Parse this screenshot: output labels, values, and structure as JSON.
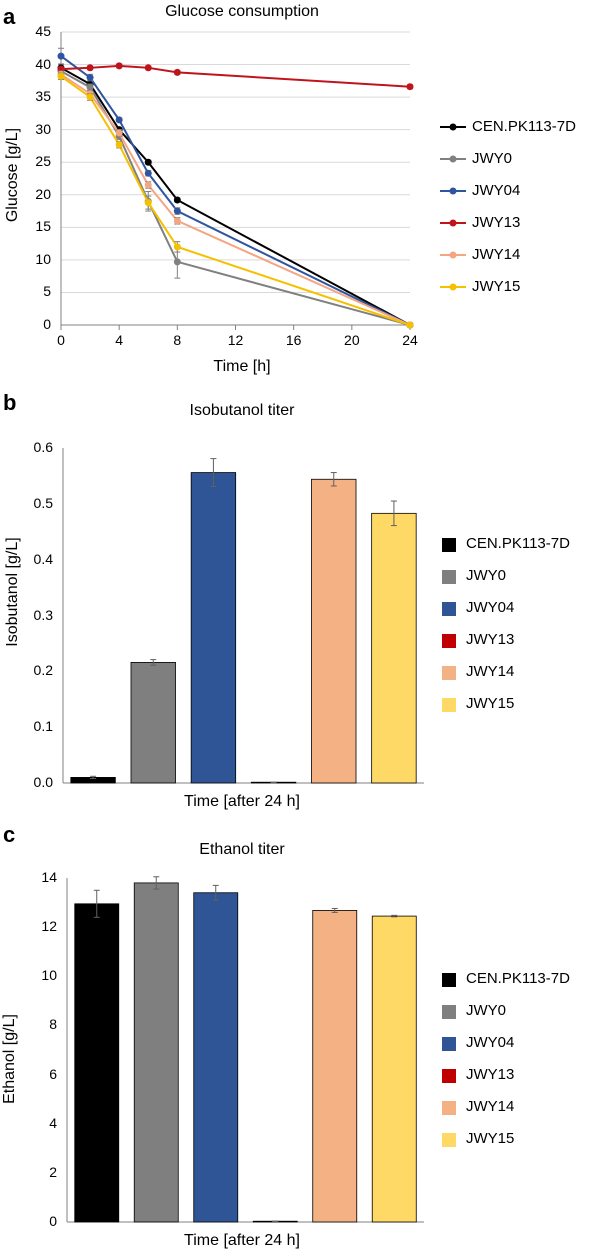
{
  "chart_data": [
    {
      "panel": "a",
      "type": "line",
      "title": "Glucose consumption",
      "xlabel": "Time [h]",
      "ylabel": "Glucose [g/L]",
      "xticks": [
        0,
        4,
        8,
        12,
        16,
        20,
        24
      ],
      "yticks": [
        0,
        5,
        10,
        15,
        20,
        25,
        30,
        35,
        40,
        45
      ],
      "xlim": [
        0,
        24
      ],
      "ylim": [
        0,
        45
      ],
      "x": [
        0,
        2,
        4,
        6,
        8,
        24
      ],
      "series": [
        {
          "name": "CEN.PK113-7D",
          "color": "#000000",
          "values": [
            39.5,
            37,
            30,
            25,
            19.2,
            0
          ],
          "errors": [
            0.5,
            0.5,
            0.3,
            0.3,
            0.3,
            0
          ]
        },
        {
          "name": "JWY0",
          "color": "#808080",
          "values": [
            39,
            36.5,
            29,
            19,
            9.7,
            0
          ],
          "errors": [
            0.5,
            0.5,
            0.5,
            1.5,
            2.5,
            0
          ]
        },
        {
          "name": "JWY04",
          "color": "#2f55a0",
          "values": [
            41.3,
            38,
            31.5,
            23.3,
            17.5,
            0
          ],
          "errors": [
            1.2,
            0.5,
            0.3,
            0.4,
            0.5,
            0
          ]
        },
        {
          "name": "JWY13",
          "color": "#c0141c",
          "values": [
            39.3,
            39.5,
            39.8,
            39.5,
            38.8,
            36.6
          ],
          "errors": [
            0.3,
            0.3,
            0.3,
            0.3,
            0.3,
            0.3
          ]
        },
        {
          "name": "JWY14",
          "color": "#f4a582",
          "values": [
            38.5,
            35.5,
            29.5,
            21.5,
            16,
            0
          ],
          "errors": [
            0.5,
            0.5,
            0.5,
            0.5,
            0.5,
            0
          ]
        },
        {
          "name": "JWY15",
          "color": "#f5c000",
          "values": [
            38.2,
            35,
            27.7,
            18.8,
            12,
            0
          ],
          "errors": [
            0.5,
            0.5,
            0.5,
            1.0,
            0.8,
            0
          ]
        }
      ]
    },
    {
      "panel": "b",
      "type": "bar",
      "title": "Isobutanol titer",
      "xlabel": "Time [after 24 h]",
      "ylabel": "Isobutanol [g/L]",
      "yticks": [
        "0.0",
        "0.1",
        "0.2",
        "0.3",
        "0.4",
        "0.5",
        "0.6"
      ],
      "ylim": [
        0,
        0.6
      ],
      "categories": [
        "CEN.PK113-7D",
        "JWY0",
        "JWY04",
        "JWY13",
        "JWY14",
        "JWY15"
      ],
      "colors": [
        "#000000",
        "#7f7f7f",
        "#2f5597",
        "#c00000",
        "#f4b183",
        "#ffd966"
      ],
      "values": [
        0.01,
        0.216,
        0.556,
        0.001,
        0.544,
        0.483
      ],
      "errors": [
        0.002,
        0.005,
        0.025,
        0.0005,
        0.012,
        0.022
      ]
    },
    {
      "panel": "c",
      "type": "bar",
      "title": "Ethanol titer",
      "xlabel": "Time [after 24 h]",
      "ylabel": "Ethanol [g/L]",
      "yticks": [
        "0",
        "2",
        "4",
        "6",
        "8",
        "10",
        "12",
        "14"
      ],
      "ylim": [
        0,
        14
      ],
      "categories": [
        "CEN.PK113-7D",
        "JWY0",
        "JWY04",
        "JWY13",
        "JWY14",
        "JWY15"
      ],
      "colors": [
        "#000000",
        "#7f7f7f",
        "#2f5597",
        "#c00000",
        "#f4b183",
        "#ffd966"
      ],
      "values": [
        12.95,
        13.8,
        13.4,
        0.03,
        12.68,
        12.45
      ],
      "errors": [
        0.55,
        0.25,
        0.3,
        0.01,
        0.08,
        0.03
      ]
    }
  ]
}
